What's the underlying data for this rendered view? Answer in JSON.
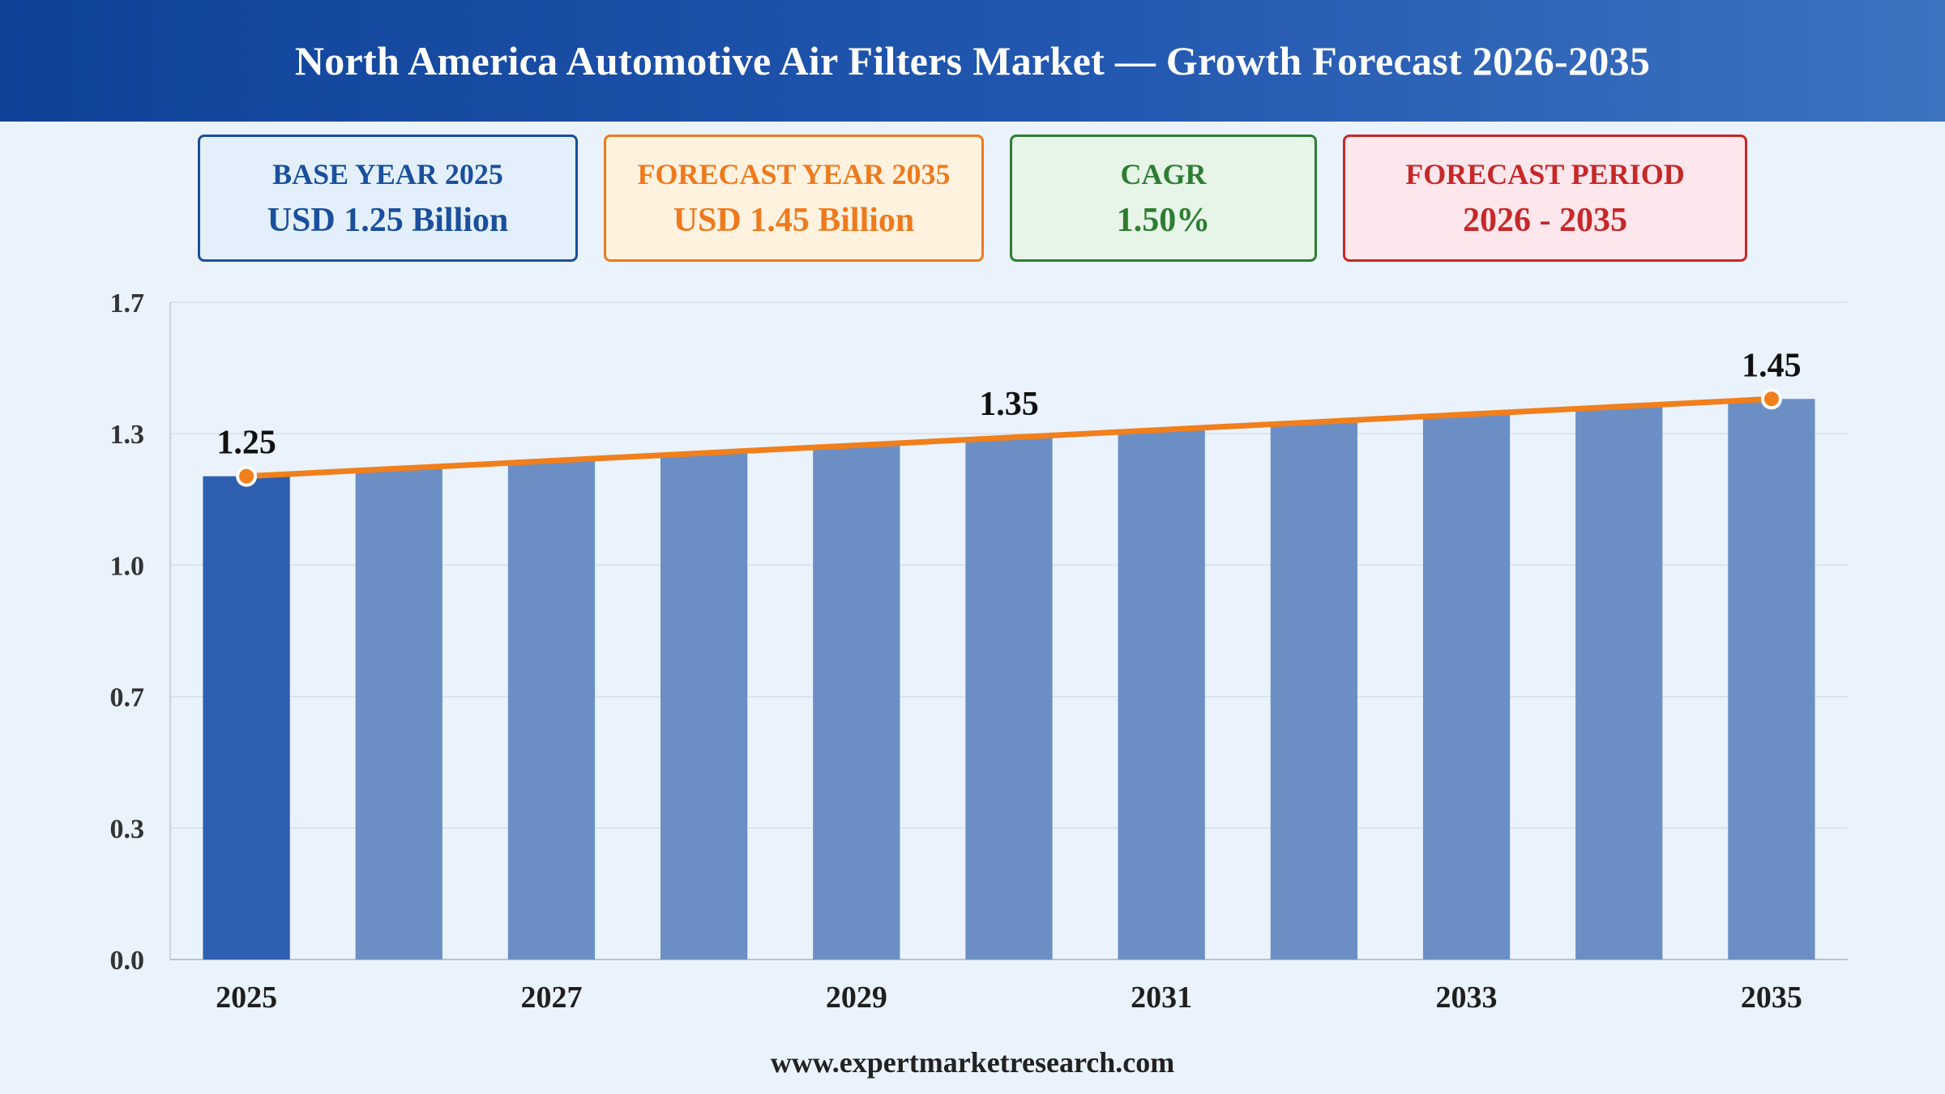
{
  "header": {
    "title": "North America Automotive Air Filters Market — Growth Forecast 2026-2035"
  },
  "cards": {
    "base": {
      "label": "BASE YEAR 2025",
      "value": "USD 1.25 Billion"
    },
    "forecast": {
      "label": "FORECAST YEAR 2035",
      "value": "USD 1.45 Billion"
    },
    "cagr": {
      "label": "CAGR",
      "value": "1.50%"
    },
    "period": {
      "label": "FORECAST PERIOD",
      "value": "2026 - 2035"
    }
  },
  "footer": {
    "source": "www.expertmarketresearch.com"
  },
  "colors": {
    "highlight_bar": "#2e5fb0",
    "bar": "#6b8fc5",
    "trend_line": "#f07f1c",
    "grid": "#d6dee9"
  },
  "chart_data": {
    "type": "bar",
    "categories": [
      "2025",
      "2026",
      "2027",
      "2028",
      "2029",
      "2030",
      "2031",
      "2032",
      "2033",
      "2034",
      "2035"
    ],
    "values": [
      1.25,
      1.27,
      1.29,
      1.31,
      1.33,
      1.35,
      1.37,
      1.39,
      1.41,
      1.43,
      1.45
    ],
    "x_tick_labels": [
      "2025",
      "2027",
      "2029",
      "2031",
      "2033",
      "2035"
    ],
    "y_ticks": [
      "0.0",
      "0.3",
      "0.7",
      "1.0",
      "1.3",
      "1.7"
    ],
    "ylim": [
      0,
      1.7
    ],
    "data_labels": [
      {
        "category": "2025",
        "text": "1.25"
      },
      {
        "category": "2030",
        "text": "1.35"
      },
      {
        "category": "2035",
        "text": "1.45"
      }
    ],
    "trend_line": {
      "from": "2025",
      "to": "2035",
      "values": [
        1.25,
        1.45
      ]
    },
    "grid": true,
    "title": "",
    "xlabel": "",
    "ylabel": ""
  }
}
